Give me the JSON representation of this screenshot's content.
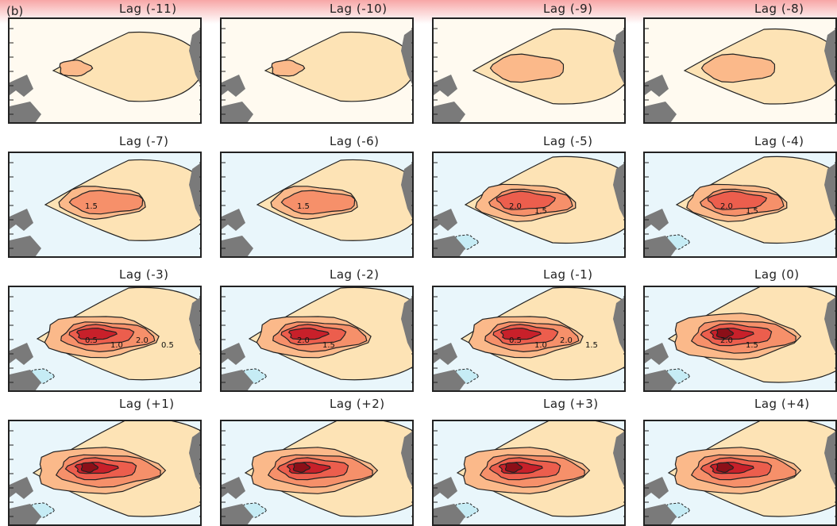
{
  "figure_label": "(b)",
  "panels": [
    {
      "title": "Lag (-11)",
      "intensity": 0,
      "labels": []
    },
    {
      "title": "Lag (-10)",
      "intensity": 0,
      "labels": []
    },
    {
      "title": "Lag (-9)",
      "intensity": 1,
      "labels": []
    },
    {
      "title": "Lag (-8)",
      "intensity": 1,
      "labels": []
    },
    {
      "title": "Lag (-7)",
      "intensity": 2,
      "labels": [
        "1.5"
      ]
    },
    {
      "title": "Lag (-6)",
      "intensity": 2,
      "labels": [
        "1.5"
      ]
    },
    {
      "title": "Lag (-5)",
      "intensity": 3,
      "labels": [
        "2.0",
        "1.5"
      ]
    },
    {
      "title": "Lag (-4)",
      "intensity": 3,
      "labels": [
        "2.0",
        "1.5"
      ]
    },
    {
      "title": "Lag (-3)",
      "intensity": 4,
      "labels": [
        "0.5",
        "1.0",
        "2.0",
        "0.5"
      ]
    },
    {
      "title": "Lag (-2)",
      "intensity": 4,
      "labels": [
        "2.0",
        "1.5"
      ]
    },
    {
      "title": "Lag (-1)",
      "intensity": 4,
      "labels": [
        "0.5",
        "1.0",
        "2.0",
        "1.5"
      ]
    },
    {
      "title": "Lag (0)",
      "intensity": 5,
      "labels": [
        "2.0",
        "1.5"
      ]
    },
    {
      "title": "Lag (+1)",
      "intensity": 5,
      "labels": []
    },
    {
      "title": "Lag (+2)",
      "intensity": 5,
      "labels": []
    },
    {
      "title": "Lag (+3)",
      "intensity": 5,
      "labels": []
    },
    {
      "title": "Lag (+4)",
      "intensity": 5,
      "labels": []
    }
  ],
  "colors": {
    "level_0": "#fffaf0",
    "level_1": "#fde3b5",
    "level_2": "#fbb98a",
    "level_3": "#f6906a",
    "level_4": "#ec5e4d",
    "level_5": "#c8202a",
    "negative": "#c6ecf5",
    "land": "#7a7a7a"
  }
}
